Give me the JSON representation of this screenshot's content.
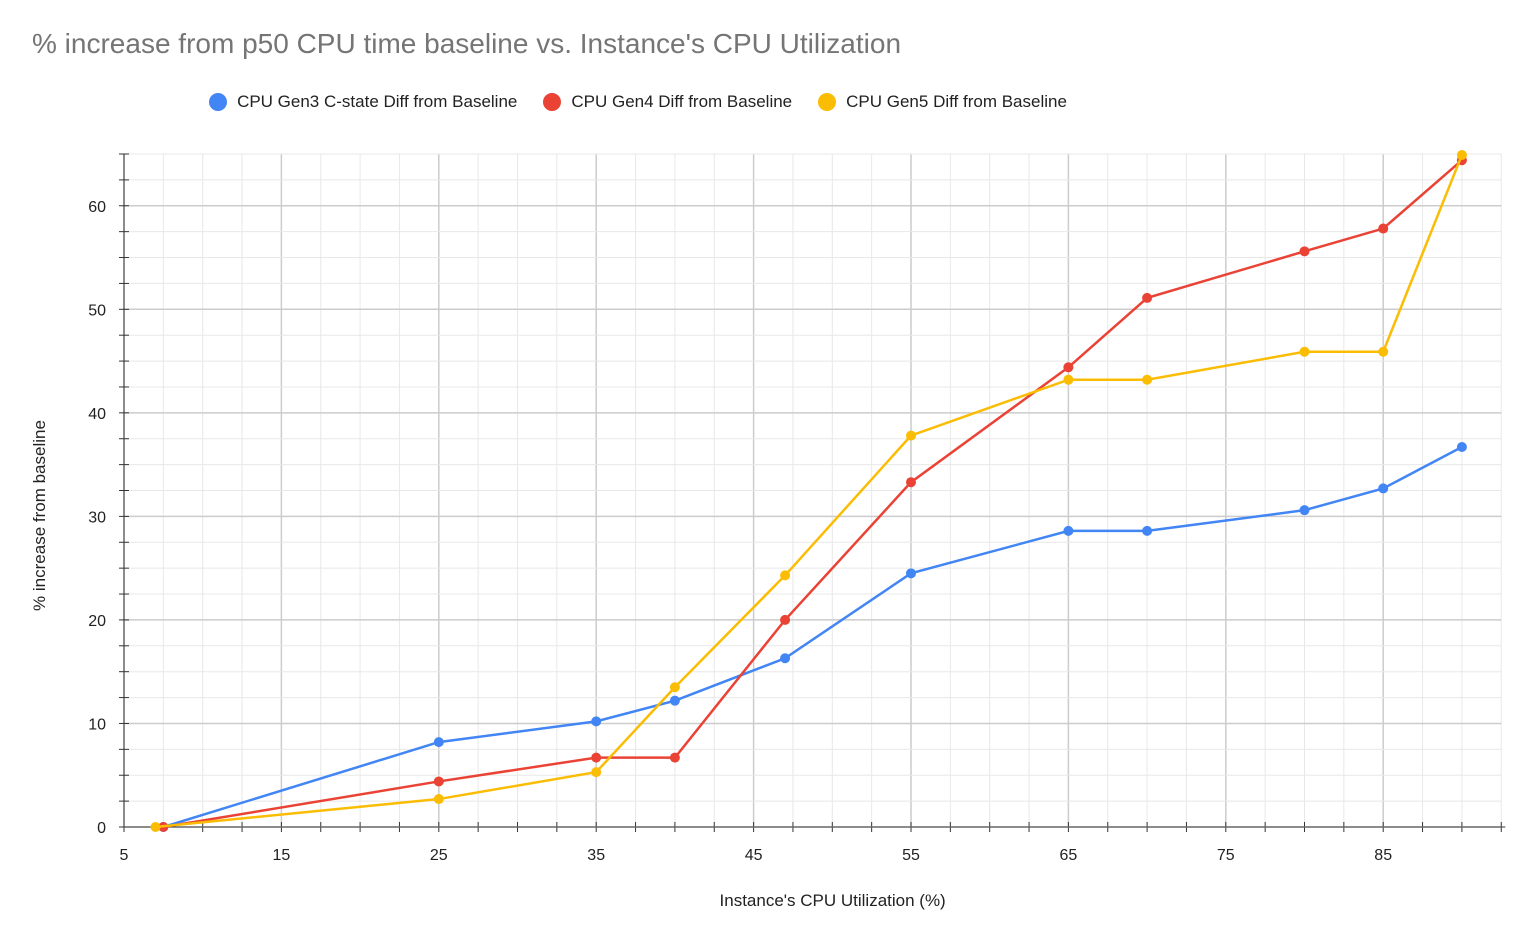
{
  "chart_data": {
    "type": "line",
    "title": "%  increase from p50 CPU time baseline vs. Instance's CPU Utilization",
    "xlabel": "Instance's CPU Utilization (%)",
    "ylabel": "% increase from baseline",
    "xlim": [
      5,
      92.5
    ],
    "ylim": [
      0,
      65
    ],
    "xticks": [
      5,
      15,
      25,
      35,
      45,
      55,
      65,
      75,
      85
    ],
    "yticks": [
      0,
      10,
      20,
      30,
      40,
      50,
      60
    ],
    "grid": true,
    "legend": "top",
    "series": [
      {
        "name": "CPU Gen3 C-state Diff from Baseline",
        "color": "#4285f4",
        "x": [
          7.5,
          25,
          35,
          40,
          47,
          55,
          65,
          70,
          80,
          85,
          90
        ],
        "y": [
          0,
          8.2,
          10.2,
          12.2,
          16.3,
          24.5,
          28.6,
          28.6,
          30.6,
          32.7,
          36.7
        ]
      },
      {
        "name": "CPU Gen4 Diff from Baseline",
        "color": "#ea4335",
        "x": [
          7.5,
          25,
          35,
          40,
          47,
          55,
          65,
          70,
          80,
          85,
          90
        ],
        "y": [
          0,
          4.4,
          6.7,
          6.7,
          20,
          33.3,
          44.4,
          51.1,
          55.6,
          57.8,
          64.4
        ]
      },
      {
        "name": "CPU Gen5 Diff from Baseline",
        "color": "#fbbc04",
        "x": [
          7,
          25,
          35,
          40,
          47,
          55,
          65,
          70,
          80,
          85,
          90
        ],
        "y": [
          0,
          2.7,
          5.3,
          13.5,
          24.3,
          37.8,
          43.2,
          43.2,
          45.9,
          45.9,
          64.9
        ]
      }
    ]
  }
}
